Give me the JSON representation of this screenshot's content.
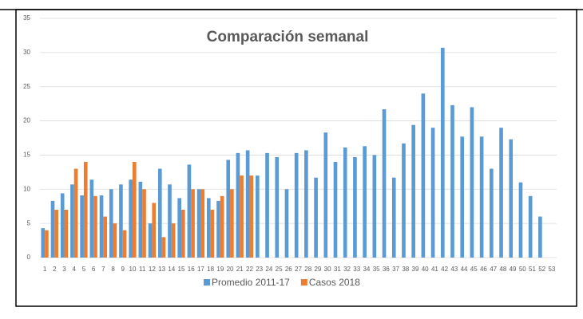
{
  "chart_data": {
    "type": "bar",
    "title": "Comparación semanal",
    "categories": [
      "1",
      "2",
      "3",
      "4",
      "5",
      "6",
      "7",
      "8",
      "9",
      "10",
      "11",
      "12",
      "13",
      "14",
      "15",
      "16",
      "17",
      "18",
      "19",
      "20",
      "21",
      "22",
      "23",
      "24",
      "25",
      "26",
      "27",
      "28",
      "29",
      "30",
      "31",
      "32",
      "33",
      "34",
      "35",
      "36",
      "37",
      "38",
      "39",
      "40",
      "41",
      "42",
      "43",
      "44",
      "45",
      "46",
      "47",
      "48",
      "49",
      "50",
      "51",
      "52",
      "53"
    ],
    "series": [
      {
        "name": "Promedio 2011-17",
        "color": "#5b9bd5",
        "values": [
          4.3,
          8.3,
          9.4,
          10.7,
          9.1,
          11.4,
          9.1,
          10.0,
          10.7,
          11.4,
          11.1,
          5.0,
          13.0,
          10.7,
          8.7,
          13.6,
          10.0,
          8.7,
          8.3,
          14.3,
          15.3,
          15.7,
          12.0,
          15.3,
          14.7,
          10.0,
          15.3,
          15.7,
          11.7,
          18.3,
          14.0,
          16.1,
          14.7,
          16.3,
          15.0,
          21.7,
          11.7,
          16.7,
          19.4,
          24.0,
          19.0,
          30.7,
          22.3,
          17.7,
          22.0,
          17.7,
          13.0,
          19.0,
          17.3,
          11.0,
          9.0,
          6.0,
          null
        ]
      },
      {
        "name": "Casos 2018",
        "color": "#ed7d31",
        "values": [
          4,
          7,
          7,
          13,
          14,
          9,
          6,
          5,
          4,
          14,
          10,
          8,
          3,
          5,
          7,
          10,
          10,
          7,
          9,
          10,
          12,
          12,
          null,
          null,
          null,
          null,
          null,
          null,
          null,
          null,
          null,
          null,
          null,
          null,
          null,
          null,
          null,
          null,
          null,
          null,
          null,
          null,
          null,
          null,
          null,
          null,
          null,
          null,
          null,
          null,
          null,
          null,
          null
        ]
      }
    ],
    "ylim": [
      0,
      35
    ],
    "yticks": [
      0,
      5,
      10,
      15,
      20,
      25,
      30,
      35
    ],
    "grid": true,
    "legend": "bottom"
  }
}
